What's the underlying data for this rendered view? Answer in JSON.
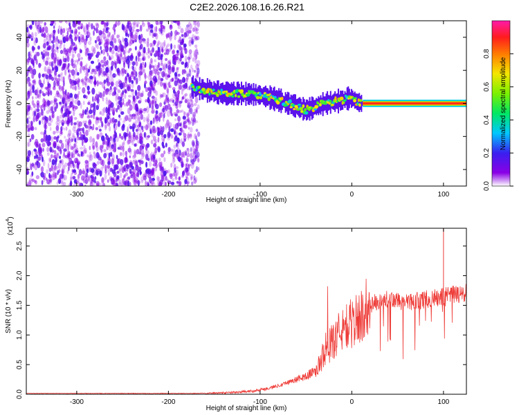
{
  "title": "C2E2.2026.108.16.26.R21",
  "chart_data": [
    {
      "type": "heatmap",
      "xlabel": "Height of straight line (km)",
      "ylabel": "Frequency (Hz)",
      "xlim": [
        -355,
        125
      ],
      "ylim": [
        -50,
        50
      ],
      "xticks": [
        -300,
        -200,
        -100,
        0,
        100
      ],
      "xtick_labels": [
        "-300",
        "-200",
        "-100",
        "0",
        "100"
      ],
      "yticks": [
        -40,
        -20,
        0,
        20,
        40
      ],
      "ytick_labels": [
        "-40",
        "-20",
        "0",
        "20",
        "40"
      ],
      "colorbar": {
        "label": "Normalized spectral amplitude",
        "range": [
          0,
          1
        ],
        "ticks": [
          0.0,
          0.2,
          0.4,
          0.6,
          0.8
        ],
        "tick_labels": [
          "0.0",
          "0.2",
          "0.4",
          "0.6",
          "0.8"
        ],
        "colormap": "rainbow (purple→blue→cyan→green→yellow→orange→red→magenta)"
      },
      "regions": [
        {
          "description": "broadband noise",
          "x_range": [
            -355,
            -175
          ],
          "freq_range": [
            -50,
            50
          ],
          "amplitude": [
            0.0,
            0.2
          ]
        },
        {
          "description": "coherent tone",
          "x_range": [
            -175,
            125
          ],
          "amplitude": [
            0.3,
            1.0
          ]
        }
      ],
      "tone_track": {
        "x": [
          -175,
          -160,
          -140,
          -120,
          -100,
          -80,
          -60,
          -50,
          -40,
          -30,
          -20,
          -10,
          -5,
          0,
          5,
          10,
          20,
          40,
          60,
          80,
          100,
          125
        ],
        "frequency": [
          10,
          8,
          6,
          6,
          5,
          2,
          -2,
          -4,
          -2,
          0,
          1,
          2,
          3,
          3,
          1,
          0,
          0,
          0,
          0,
          0,
          0,
          0
        ]
      },
      "grid": false
    },
    {
      "type": "line",
      "xlabel": "Height of straight line (km)",
      "ylabel": "SNR (10 * v/v)",
      "multiplier_label": "(x10",
      "multiplier_exponent": "4",
      "multiplier_close": ")",
      "xlim": [
        -355,
        125
      ],
      "ylim": [
        0,
        2.8
      ],
      "xticks": [
        -300,
        -200,
        -100,
        0,
        100
      ],
      "xtick_labels": [
        "-300",
        "-200",
        "-100",
        "0",
        "100"
      ],
      "yticks": [
        0.0,
        0.5,
        1.0,
        1.5,
        2.0,
        2.5
      ],
      "ytick_labels": [
        "0.0",
        "0.5",
        "1.0",
        "1.5",
        "2.0",
        "2.5"
      ],
      "color": "#ee3a36",
      "series": [
        {
          "x": [
            -355,
            -300,
            -250,
            -200,
            -170,
            -150,
            -130,
            -110,
            -100,
            -90,
            -80,
            -70,
            -60,
            -50,
            -40,
            -35,
            -30,
            -25,
            -20,
            -15,
            -10,
            -5,
            0,
            5,
            10,
            15,
            20,
            25,
            30,
            40,
            50,
            60,
            70,
            80,
            90,
            95,
            100,
            105,
            110,
            120,
            125
          ],
          "values": [
            0.01,
            0.01,
            0.01,
            0.01,
            0.01,
            0.02,
            0.03,
            0.05,
            0.08,
            0.1,
            0.15,
            0.2,
            0.25,
            0.3,
            0.4,
            0.5,
            0.75,
            0.8,
            0.9,
            1.0,
            1.1,
            1.15,
            1.2,
            1.25,
            1.3,
            1.45,
            1.5,
            1.55,
            1.55,
            1.6,
            1.57,
            1.55,
            1.58,
            1.6,
            1.62,
            1.63,
            1.65,
            1.65,
            1.68,
            1.68,
            1.7
          ]
        }
      ],
      "grid": false
    }
  ]
}
